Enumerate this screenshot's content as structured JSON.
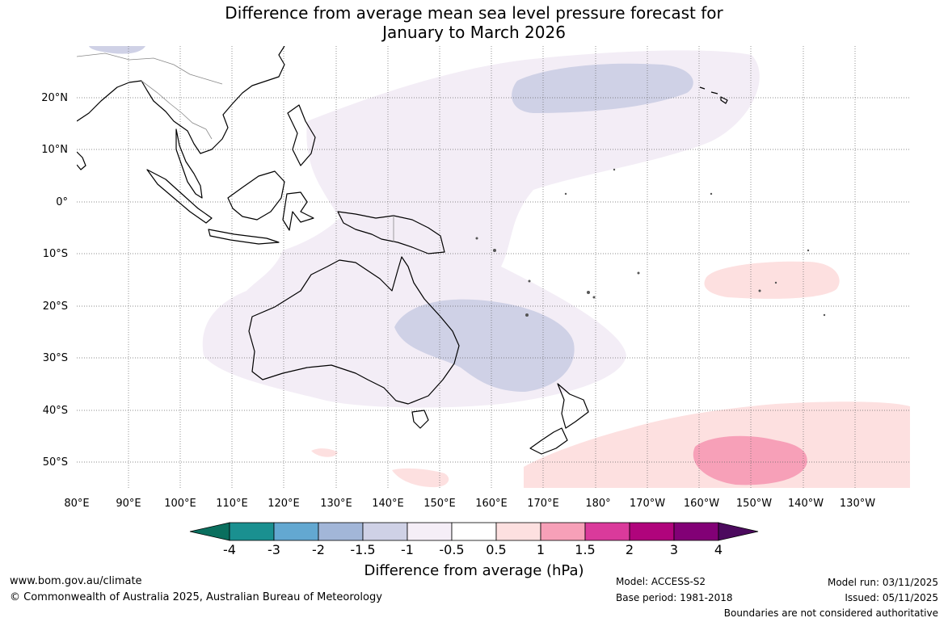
{
  "title_line1": "Difference from average mean sea level pressure forecast for",
  "title_line2": "January to March 2026",
  "lon_labels": [
    "80°E",
    "90°E",
    "100°E",
    "110°E",
    "120°E",
    "130°E",
    "140°E",
    "150°E",
    "160°E",
    "170°E",
    "180°",
    "170°W",
    "160°W",
    "150°W",
    "140°W",
    "130°W"
  ],
  "lat_labels": [
    "20°N",
    "10°N",
    "0°",
    "10°S",
    "20°S",
    "30°S",
    "40°S",
    "50°S"
  ],
  "colorbar": {
    "colors": [
      "#0a6f5e",
      "#1a9090",
      "#63a8d1",
      "#a2b6d8",
      "#cfd1e6",
      "#f5eef7",
      "#ffffff",
      "#fde0e0",
      "#f7a0b8",
      "#da3a9b",
      "#b0047c",
      "#820076",
      "#4c0a5e"
    ],
    "tick_labels": [
      "-4",
      "-3",
      "-2",
      "-1.5",
      "-1",
      "-0.5",
      "0.5",
      "1",
      "1.5",
      "2",
      "3",
      "4"
    ],
    "title": "Difference from average (hPa)"
  },
  "footer": {
    "website": "www.bom.gov.au/climate",
    "copyright": "© Commonwealth of Australia 2025, Australian Bureau of Meteorology",
    "model": "Model: ACCESS-S2",
    "base_period": "Base period: 1981-2018",
    "model_run": "Model run: 03/11/2025",
    "issued": "Issued: 05/11/2025",
    "disclaimer": "Boundaries are not considered authoritative"
  }
}
